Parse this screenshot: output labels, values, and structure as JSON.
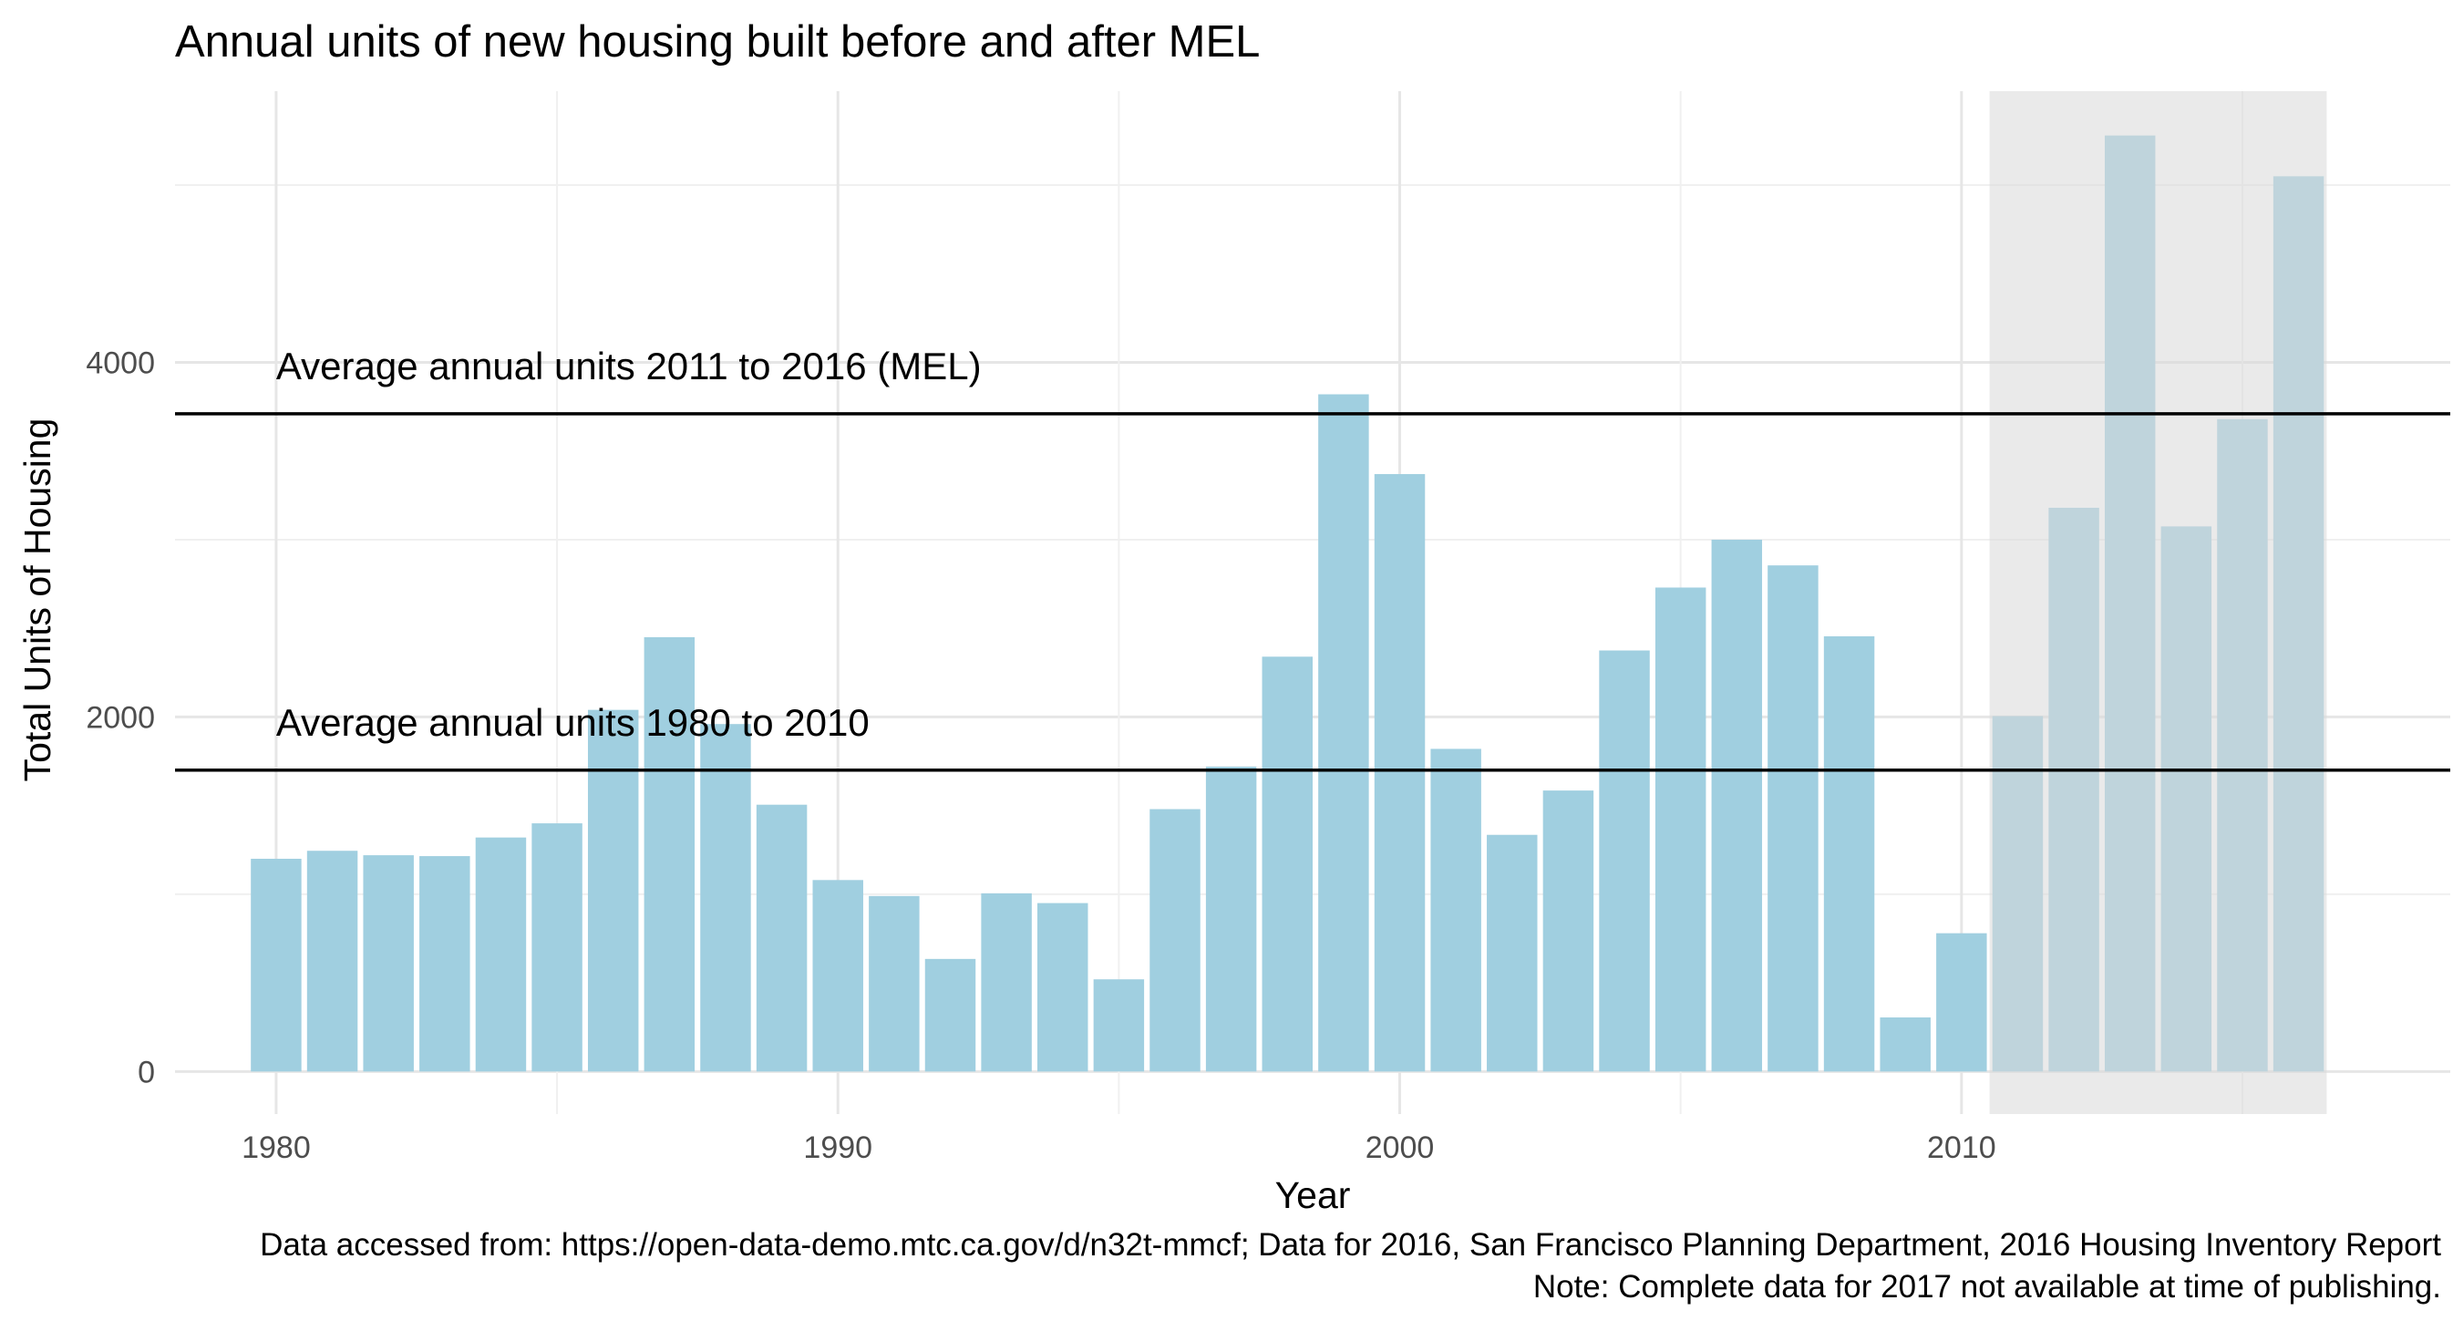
{
  "chart_data": {
    "type": "bar",
    "title": "Annual units of new housing built before and after MEL",
    "xlabel": "Year",
    "ylabel": "Total Units of Housing",
    "x": [
      1980,
      1981,
      1982,
      1983,
      1984,
      1985,
      1986,
      1987,
      1988,
      1989,
      1990,
      1991,
      1992,
      1993,
      1994,
      1995,
      1996,
      1997,
      1998,
      1999,
      2000,
      2001,
      2002,
      2003,
      2004,
      2005,
      2006,
      2007,
      2008,
      2009,
      2010,
      2011,
      2012,
      2013,
      2014,
      2015,
      2016
    ],
    "values": [
      1200,
      1245,
      1220,
      1215,
      1320,
      1400,
      2040,
      2450,
      1960,
      1505,
      1080,
      990,
      635,
      1005,
      950,
      520,
      1480,
      1720,
      2340,
      3820,
      3370,
      1820,
      1335,
      1585,
      2375,
      2730,
      3000,
      2855,
      2455,
      305,
      780,
      2005,
      3180,
      5280,
      3075,
      3680,
      5050
    ],
    "xlim": [
      1978.2,
      2018.7
    ],
    "ylim": [
      -240,
      5530
    ],
    "x_ticks": [
      1980,
      1990,
      2000,
      2010
    ],
    "y_ticks": [
      0,
      2000,
      4000
    ],
    "x_tick_labels": [
      "1980",
      "1990",
      "2000",
      "2010"
    ],
    "y_tick_labels": [
      "0",
      "2000",
      "4000"
    ],
    "grid": true,
    "bar_color": "#a0cfe0",
    "highlight": {
      "x_range": [
        2010.5,
        2016.5
      ],
      "color": "#d9d9d9"
    },
    "reference_lines": [
      {
        "value": 3710,
        "label": "Average annual units 2011 to 2016 (MEL)"
      },
      {
        "value": 1700,
        "label": "Average annual units 1980 to 2010"
      }
    ],
    "caption": [
      "Data accessed from: https://open-data-demo.mtc.ca.gov/d/n32t-mmcf; Data for 2016, San Francisco Planning Department, 2016 Housing Inventory Report",
      "Note: Complete data for 2017 not available at time of publishing."
    ]
  }
}
